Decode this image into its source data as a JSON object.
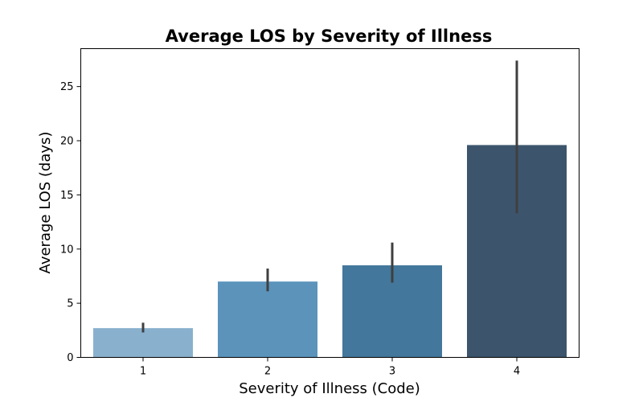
{
  "chart_data": {
    "type": "bar",
    "title": "Average LOS by Severity of Illness",
    "xlabel": "Severity of Illness (Code)",
    "ylabel": "Average LOS (days)",
    "categories": [
      "1",
      "2",
      "3",
      "4"
    ],
    "values": [
      2.7,
      7.0,
      8.5,
      19.6
    ],
    "error_bars": [
      [
        2.3,
        3.2
      ],
      [
        6.1,
        8.2
      ],
      [
        6.9,
        10.6
      ],
      [
        13.3,
        27.4
      ]
    ],
    "ylim": [
      0,
      28.5
    ],
    "yticks": [
      "0",
      "5",
      "10",
      "15",
      "20",
      "25"
    ],
    "colors": [
      "#89b1ce",
      "#5b93bb",
      "#43779b",
      "#3c556c"
    ],
    "error_color": "#3f3f3f",
    "grid": false,
    "legend": "none"
  }
}
